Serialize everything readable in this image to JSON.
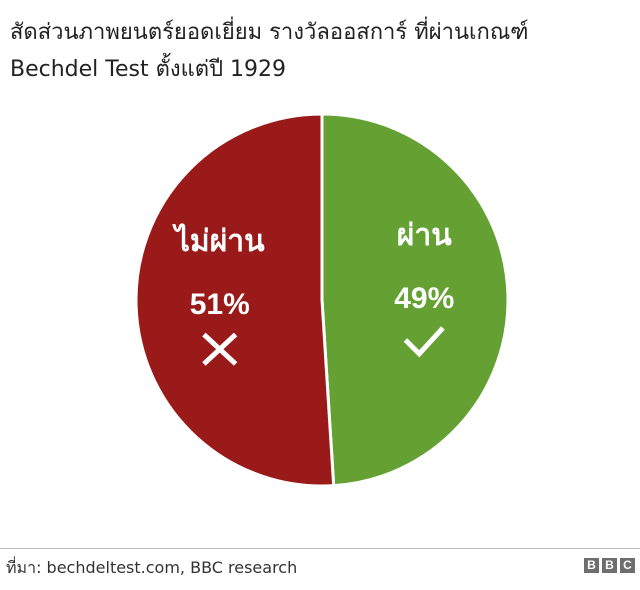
{
  "title_lines": [
    "สัดส่วนภาพยนตร์ยอดเยี่ยม รางวัลออสการ์ ที่ผ่านเกณฑ์",
    "Bechdel Test ตั้งแต่ปี 1929"
  ],
  "chart_data": {
    "type": "pie",
    "slices": [
      {
        "label": "ผ่าน",
        "value": 49,
        "display": "49%",
        "color": "#64a032",
        "icon": "check-icon"
      },
      {
        "label": "ไม่ผ่าน",
        "value": 51,
        "display": "51%",
        "color": "#9a1a1a",
        "icon": "cross-icon"
      }
    ]
  },
  "footer": {
    "source": "ที่มา: bechdeltest.com, BBC research",
    "logo_letters": [
      "B",
      "B",
      "C"
    ]
  }
}
